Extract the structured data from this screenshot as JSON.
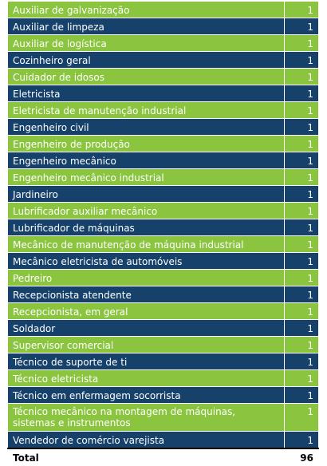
{
  "colors": {
    "green": "#8bc43f",
    "navy": "#16416b"
  },
  "rows": [
    {
      "label": "Auxiliar de galvanização",
      "count": "1",
      "color": "green"
    },
    {
      "label": "Auxiliar de limpeza",
      "count": "1",
      "color": "navy"
    },
    {
      "label": "Auxiliar de logística",
      "count": "1",
      "color": "green"
    },
    {
      "label": "Cozinheiro geral",
      "count": "1",
      "color": "navy"
    },
    {
      "label": "Cuidador de idosos",
      "count": "1",
      "color": "green"
    },
    {
      "label": "Eletricista",
      "count": "1",
      "color": "navy"
    },
    {
      "label": "Eletricista de manutenção industrial",
      "count": "1",
      "color": "green"
    },
    {
      "label": "Engenheiro civil",
      "count": "1",
      "color": "navy"
    },
    {
      "label": "Engenheiro de produção",
      "count": "1",
      "color": "green"
    },
    {
      "label": "Engenheiro mecânico",
      "count": "1",
      "color": "navy"
    },
    {
      "label": "Engenheiro mecânico industrial",
      "count": "1",
      "color": "green"
    },
    {
      "label": "Jardineiro",
      "count": "1",
      "color": "navy"
    },
    {
      "label": "Lubrificador auxiliar mecânico",
      "count": "1",
      "color": "green"
    },
    {
      "label": "Lubrificador de máquinas",
      "count": "1",
      "color": "navy"
    },
    {
      "label": "Mecânico de manutenção de máquina industrial",
      "count": "1",
      "color": "green"
    },
    {
      "label": "Mecânico eletricista de automóveis",
      "count": "1",
      "color": "navy"
    },
    {
      "label": "Pedreiro",
      "count": "1",
      "color": "green"
    },
    {
      "label": "Recepcionista atendente",
      "count": "1",
      "color": "navy"
    },
    {
      "label": "Recepcionista, em geral",
      "count": "1",
      "color": "green"
    },
    {
      "label": "Soldador",
      "count": "1",
      "color": "navy"
    },
    {
      "label": "Supervisor comercial",
      "count": "1",
      "color": "green"
    },
    {
      "label": "Técnico de suporte de ti",
      "count": "1",
      "color": "navy"
    },
    {
      "label": "Técnico eletricista",
      "count": "1",
      "color": "green"
    },
    {
      "label": "Técnico em enfermagem socorrista",
      "count": "1",
      "color": "navy"
    },
    {
      "label": "Técnico mecânico na montagem de máquinas, sistemas e instrumentos",
      "count": "1",
      "color": "green",
      "tall": true
    },
    {
      "label": "Vendedor de comércio varejista",
      "count": "1",
      "color": "navy"
    }
  ],
  "total": {
    "label": "Total",
    "count": "96"
  }
}
